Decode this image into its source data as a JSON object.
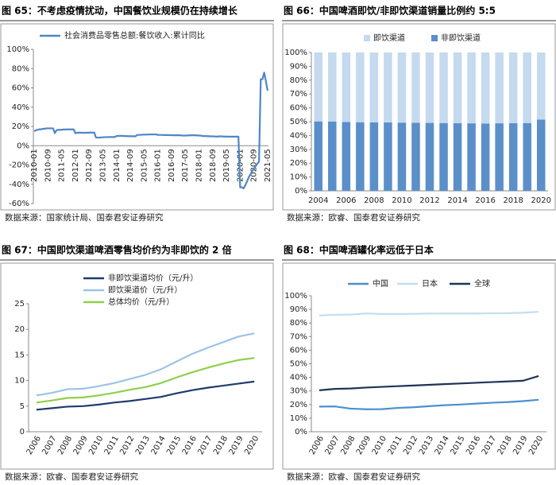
{
  "chart_data": [
    {
      "type": "line",
      "title": "图 65：不考虑疫情扰动，中国餐饮业规模仍在持续增长",
      "source": "数据来源：国家统计局、国泰君安证券研究",
      "categories": [
        "2010-01",
        null,
        null,
        null,
        null,
        null,
        null,
        null,
        "2010-09",
        null,
        null,
        null,
        null,
        null,
        null,
        null,
        "2011-05",
        null,
        null,
        null,
        null,
        null,
        null,
        null,
        "2012-01",
        null,
        null,
        null,
        null,
        null,
        null,
        null,
        "2012-09",
        null,
        null,
        null,
        null,
        null,
        null,
        null,
        "2013-05",
        null,
        null,
        null,
        null,
        null,
        null,
        null,
        "2014-01",
        null,
        null,
        null,
        null,
        null,
        null,
        null,
        "2014-09",
        null,
        null,
        null,
        null,
        null,
        null,
        null,
        "2015-05",
        null,
        null,
        null,
        null,
        null,
        null,
        null,
        "2016-01",
        null,
        null,
        null,
        null,
        null,
        null,
        null,
        "2016-09",
        null,
        null,
        null,
        null,
        null,
        null,
        null,
        "2017-05",
        null,
        null,
        null,
        null,
        null,
        null,
        null,
        "2018-01",
        null,
        null,
        null,
        null,
        null,
        null,
        null,
        "2018-09",
        null,
        null,
        null,
        null,
        null,
        null,
        null,
        "2019-05",
        null,
        null,
        null,
        null,
        null,
        null,
        null,
        "2020-01",
        null,
        null,
        null,
        null,
        null,
        null,
        null,
        "2020-09",
        null,
        null,
        null,
        null,
        null,
        null,
        null,
        "2021-05"
      ],
      "series": [
        {
          "name": "社会消费品零售总额:餐饮收入:累计同比",
          "color": "#4f86c6",
          "values": [
            15,
            16,
            16.5,
            17,
            17,
            17.5,
            17.5,
            18,
            18,
            18,
            18,
            18,
            13,
            16,
            16.5,
            16.5,
            16.5,
            16.8,
            16.8,
            16.9,
            16.9,
            16.9,
            16.9,
            16.9,
            13,
            13.5,
            13.5,
            13.5,
            13.4,
            13.4,
            13.4,
            13.5,
            13.5,
            13.6,
            13.6,
            13.6,
            8.4,
            8.4,
            8.4,
            8.6,
            8.7,
            8.8,
            8.9,
            8.9,
            9,
            9,
            9,
            9,
            10.1,
            10.1,
            10.2,
            10.2,
            10.1,
            10,
            9.9,
            9.9,
            9.8,
            9.8,
            9.8,
            9.7,
            11.2,
            11.2,
            11.3,
            11.4,
            11.5,
            11.5,
            11.6,
            11.6,
            11.7,
            11.7,
            11.7,
            11.7,
            11.2,
            11.2,
            11.2,
            11.1,
            11,
            11,
            11,
            10.9,
            10.9,
            10.8,
            10.8,
            10.8,
            10.8,
            10.8,
            10.6,
            10.5,
            10.5,
            10.6,
            10.7,
            10.7,
            10.8,
            10.8,
            10.7,
            10.7,
            10.5,
            10.5,
            10.1,
            10,
            9.9,
            9.9,
            9.8,
            9.7,
            9.7,
            9.6,
            9.5,
            9.5,
            9.7,
            9.7,
            9.5,
            9.5,
            9.5,
            9.4,
            9.4,
            9.4,
            9.4,
            9.4,
            9.4,
            9.4,
            -43.1,
            -43.1,
            -44.3,
            -41,
            -37.1,
            -32.8,
            -29.6,
            -26.6,
            -23.9,
            -21.3,
            -18.6,
            -16.6,
            68.9,
            68.9,
            75.8,
            66.9,
            57.1
          ]
        }
      ],
      "ylim": [
        -60,
        100
      ],
      "yticks": [
        {
          "value": -60,
          "label": "-60%"
        },
        {
          "value": -40,
          "label": "-40%"
        },
        {
          "value": -20,
          "label": "-20%"
        },
        {
          "value": 0,
          "label": "0%"
        },
        {
          "value": 20,
          "label": "20%"
        },
        {
          "value": 40,
          "label": "40%"
        },
        {
          "value": 60,
          "label": "60%"
        },
        {
          "value": 80,
          "label": "80%"
        },
        {
          "value": 100,
          "label": "100%"
        }
      ],
      "grid": false
    },
    {
      "type": "bar",
      "stacked": true,
      "title": "图 66：中国啤酒即饮/非即饮渠道销量比例约 5:5",
      "source": "数据来源：欧睿、国泰君安证券研究",
      "categories": [
        "2004",
        null,
        "2006",
        null,
        "2008",
        null,
        "2010",
        null,
        "2012",
        null,
        "2014",
        null,
        "2016",
        null,
        "2018",
        null,
        "2020"
      ],
      "series": [
        {
          "name": "即饮渠道",
          "color": "#c5d9ef",
          "values": [
            49.8,
            49.9,
            50.2,
            50.4,
            50.5,
            50.6,
            50.7,
            50.8,
            50.9,
            51,
            51.1,
            51.2,
            51.3,
            51.2,
            51.1,
            51,
            48.5
          ]
        },
        {
          "name": "非即饮渠道",
          "color": "#5b8fc9",
          "values": [
            50.2,
            50.1,
            49.8,
            49.6,
            49.5,
            49.4,
            49.3,
            49.2,
            49.1,
            49,
            48.9,
            48.8,
            48.7,
            48.8,
            48.9,
            49,
            51.5
          ]
        }
      ],
      "ylim": [
        0,
        100
      ],
      "yticks": [
        {
          "value": 0,
          "label": "0%"
        },
        {
          "value": 10,
          "label": "10%"
        },
        {
          "value": 20,
          "label": "20%"
        },
        {
          "value": 30,
          "label": "30%"
        },
        {
          "value": 40,
          "label": "40%"
        },
        {
          "value": 50,
          "label": "50%"
        },
        {
          "value": 60,
          "label": "60%"
        },
        {
          "value": 70,
          "label": "70%"
        },
        {
          "value": 80,
          "label": "80%"
        },
        {
          "value": 90,
          "label": "90%"
        },
        {
          "value": 100,
          "label": "100%"
        }
      ],
      "grid": false
    },
    {
      "type": "line",
      "title": "图 67：中国即饮渠道啤酒零售均价约为非即饮的 2 倍",
      "source": "数据来源：欧睿、国泰君安证券研究",
      "categories": [
        "2006",
        "2007",
        "2008",
        "2009",
        "2010",
        "2011",
        "2012",
        "2013",
        "2014",
        "2015",
        "2016",
        "2017",
        "2018",
        "2019",
        "2020"
      ],
      "series": [
        {
          "name": "非即饮渠道均价（元/升）",
          "color": "#1f3b6e",
          "values": [
            4.3,
            4.6,
            4.9,
            5,
            5.3,
            5.7,
            6,
            6.4,
            6.8,
            7.5,
            8.1,
            8.6,
            9,
            9.4,
            9.8
          ]
        },
        {
          "name": "即饮渠道价（元/升）",
          "color": "#9dc3e6",
          "values": [
            7.1,
            7.6,
            8.3,
            8.4,
            8.9,
            9.5,
            10.3,
            11.1,
            12.2,
            13.7,
            15.2,
            16.4,
            17.5,
            18.6,
            19.2
          ]
        },
        {
          "name": "总体均价（元/升）",
          "color": "#8fcf4c",
          "values": [
            5.7,
            6.1,
            6.6,
            6.7,
            7.1,
            7.6,
            8.2,
            8.7,
            9.5,
            10.6,
            11.6,
            12.5,
            13.3,
            14,
            14.4
          ]
        }
      ],
      "ylim": [
        0,
        25
      ],
      "yticks": [
        0,
        5,
        10,
        15,
        20,
        25
      ],
      "grid": false
    },
    {
      "type": "line",
      "title": "图 68：中国啤酒罐化率远低于日本",
      "source": "数据来源：欧睿、国泰君安证券研究",
      "categories": [
        "2006",
        "2007",
        "2008",
        "2009",
        "2010",
        "2011",
        "2012",
        "2013",
        "2014",
        "2015",
        "2016",
        "2017",
        "2018",
        "2019",
        "2020"
      ],
      "series": [
        {
          "name": "中国",
          "color": "#4a90d0",
          "values": [
            18.5,
            18.6,
            17,
            16.5,
            16.6,
            17.5,
            18,
            18.8,
            19.5,
            20,
            20.7,
            21.3,
            21.8,
            22.5,
            23.5
          ]
        },
        {
          "name": "日本",
          "color": "#c5ddf0",
          "values": [
            85.5,
            86,
            86.2,
            87,
            86.6,
            86.6,
            86.7,
            86.9,
            87,
            87,
            87,
            87.1,
            87.2,
            87.5,
            88.2
          ]
        },
        {
          "name": "全球",
          "color": "#1f3356",
          "values": [
            30.5,
            31.5,
            31.8,
            32.5,
            33,
            33.5,
            34,
            34.5,
            35,
            35.5,
            36,
            36.5,
            37,
            37.5,
            41
          ]
        }
      ],
      "ylim": [
        0,
        100
      ],
      "yticks": [
        {
          "value": 0,
          "label": "0%"
        },
        {
          "value": 10,
          "label": "10%"
        },
        {
          "value": 20,
          "label": "20%"
        },
        {
          "value": 30,
          "label": "30%"
        },
        {
          "value": 40,
          "label": "40%"
        },
        {
          "value": 50,
          "label": "50%"
        },
        {
          "value": 60,
          "label": "60%"
        },
        {
          "value": 70,
          "label": "70%"
        },
        {
          "value": 80,
          "label": "80%"
        },
        {
          "value": 90,
          "label": "90%"
        },
        {
          "value": 100,
          "label": "100%"
        }
      ],
      "grid": false
    }
  ]
}
